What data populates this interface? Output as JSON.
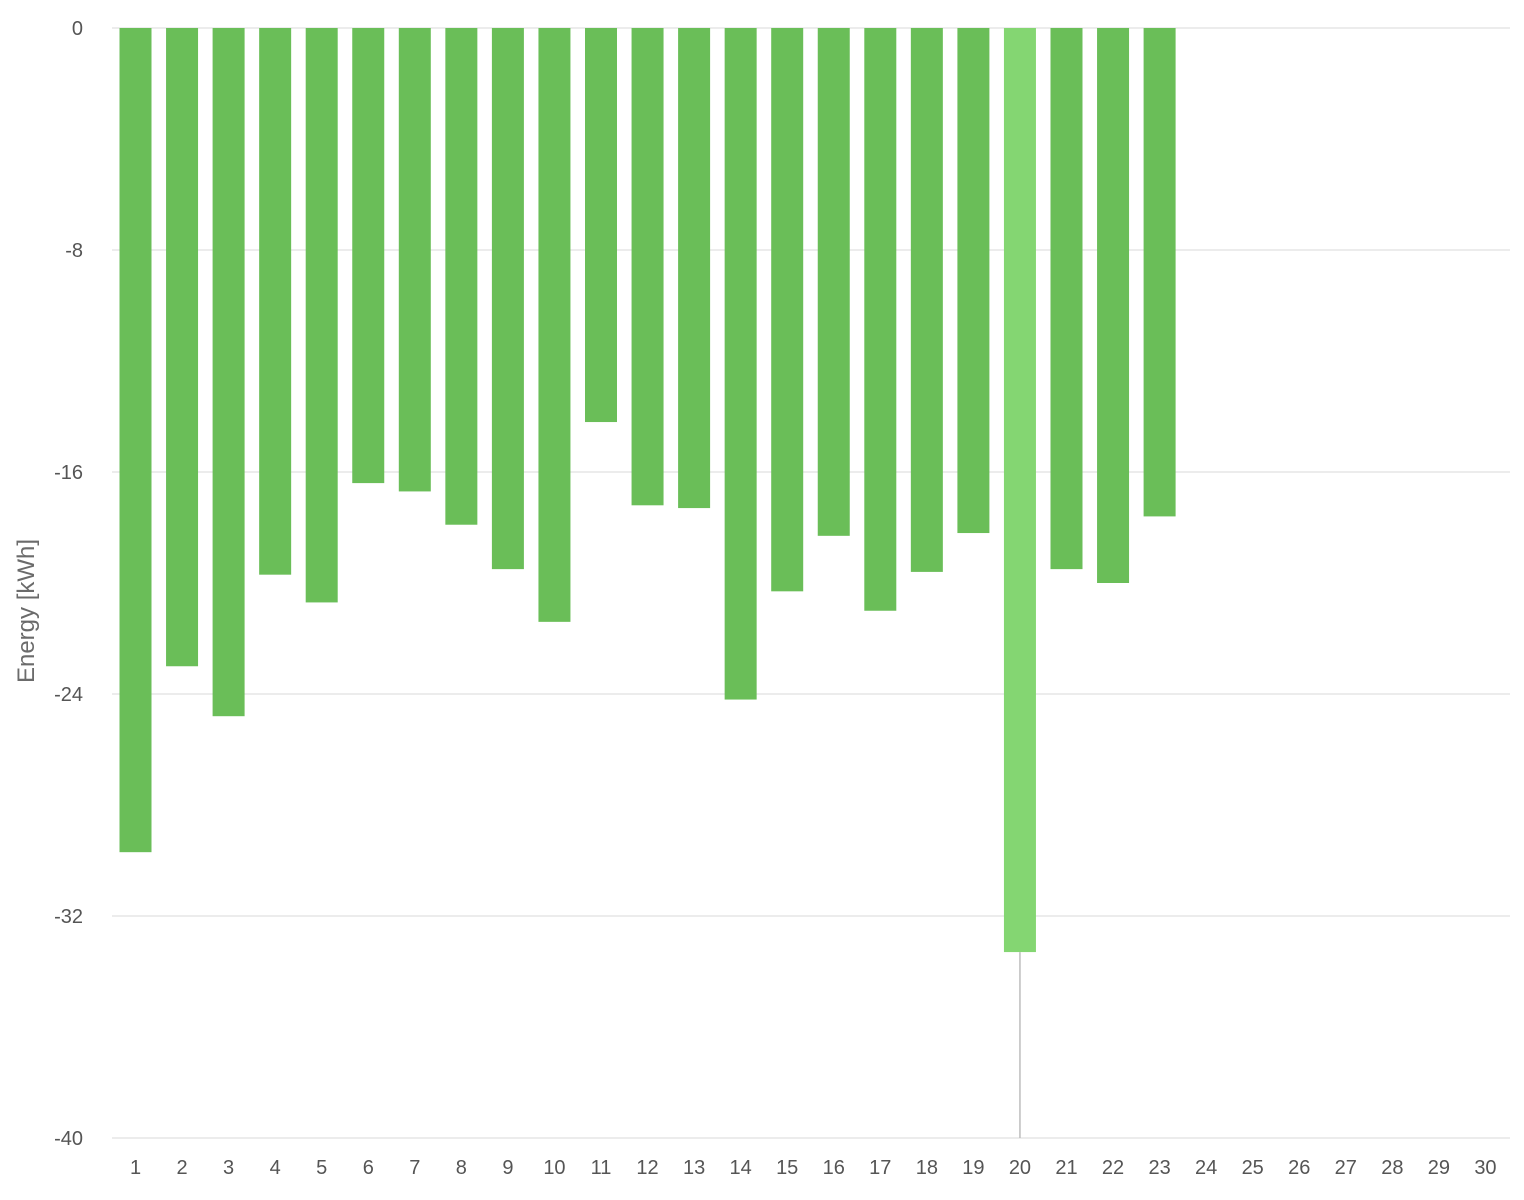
{
  "chart_data": {
    "type": "bar",
    "title": "",
    "xlabel": "",
    "ylabel": "Energy [kWh]",
    "ylim": [
      -40,
      0
    ],
    "yticks": [
      0,
      -8,
      -16,
      -24,
      -32,
      -40
    ],
    "categories": [
      "1",
      "2",
      "3",
      "4",
      "5",
      "6",
      "7",
      "8",
      "9",
      "10",
      "11",
      "12",
      "13",
      "14",
      "15",
      "16",
      "17",
      "18",
      "19",
      "20",
      "21",
      "22",
      "23",
      "24",
      "25",
      "26",
      "27",
      "28",
      "29",
      "30"
    ],
    "values": [
      -29.7,
      -23.0,
      -24.8,
      -19.7,
      -20.7,
      -16.4,
      -16.7,
      -17.9,
      -19.5,
      -21.4,
      -14.2,
      -17.2,
      -17.3,
      -24.2,
      -20.3,
      -18.3,
      -21.0,
      -19.6,
      -18.2,
      -33.3,
      -19.5,
      -20.0,
      -17.6,
      null,
      null,
      null,
      null,
      null,
      null,
      null
    ],
    "highlight_index": 19,
    "colors": {
      "bar": "#6abe58",
      "highlight": "#84d672",
      "grid": "#e6e6e6",
      "crosshair": "#bdbdbd"
    },
    "grid": true,
    "legend": "none"
  }
}
